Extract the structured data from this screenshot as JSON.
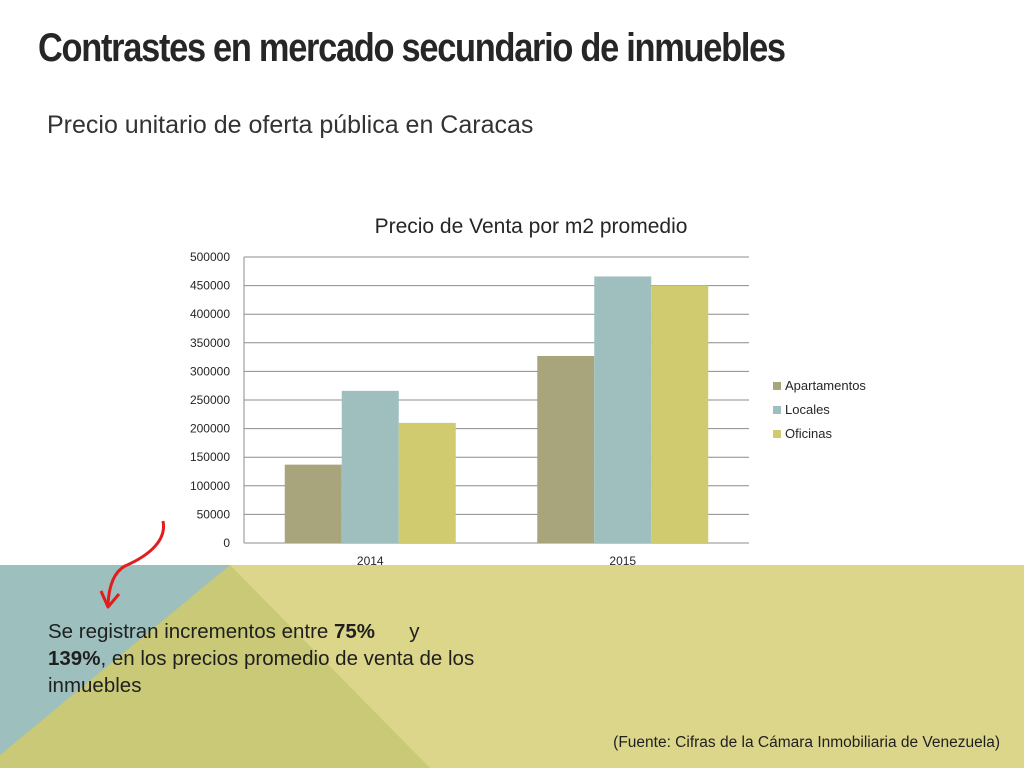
{
  "slide": {
    "title": "Contrastes en mercado secundario de inmuebles",
    "subtitle": "Precio unitario de oferta pública en Caracas"
  },
  "chart_data": {
    "type": "bar",
    "title": "Precio de Venta por m2 promedio",
    "categories": [
      "2014",
      "2015"
    ],
    "series": [
      {
        "name": "Apartamentos",
        "values": [
          137000,
          327000
        ],
        "color": "#a8a57c"
      },
      {
        "name": "Locales",
        "values": [
          266000,
          466000
        ],
        "color": "#9fbfbe"
      },
      {
        "name": "Oficinas",
        "values": [
          210000,
          450000
        ],
        "color": "#cfcb6e"
      }
    ],
    "ylim": [
      0,
      500000
    ],
    "yticks": [
      "0",
      "50000",
      "100000",
      "150000",
      "200000",
      "250000",
      "300000",
      "350000",
      "400000",
      "450000",
      "500000"
    ],
    "xlabel": "",
    "ylabel": "",
    "grid": true,
    "legend": "right"
  },
  "callout": {
    "prefix": "Se registran incrementos entre ",
    "low": "75%",
    "connector": "      y",
    "high": "139%",
    "suffix": ",  en los precios promedio de venta de los inmuebles"
  },
  "source": "(Fuente: Cifras de la Cámara Inmobiliaria de Venezuela)",
  "colors": {
    "band_yellow": "#dcd68b",
    "band_olive": "#c9c978",
    "band_teal": "#9dbfbd",
    "arrow_red": "#e11d1d"
  }
}
